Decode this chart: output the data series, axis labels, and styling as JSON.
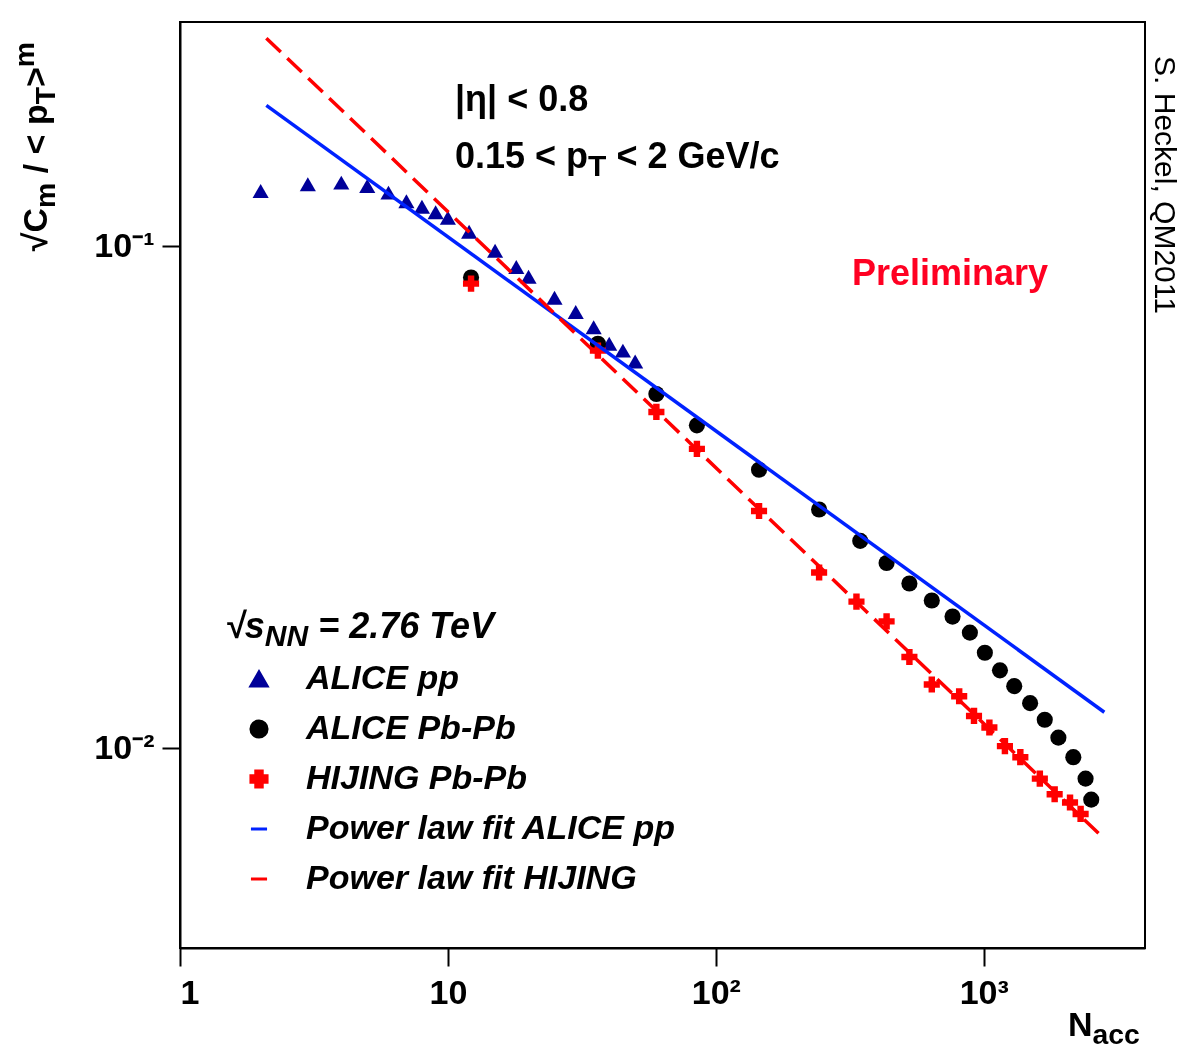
{
  "chart_data": {
    "type": "scatter",
    "xlabel": "N$_{acc}$",
    "ylabel": "√C$_{m}$ / < p$_{T}$>$^{m}$",
    "legend_title": "√s$_{NN}$ = 2.76 TeV",
    "log": "xy",
    "grid": false,
    "legend": "bottom left",
    "xlim": [
      1,
      4000
    ],
    "ylim": [
      0.004,
      0.28
    ],
    "xticks": [
      1,
      10,
      {
        "value": 100,
        "label": "10²"
      },
      {
        "value": 1000,
        "label": "10³"
      }
    ],
    "yticks": [
      {
        "value": 0.01,
        "label": "10⁻²"
      },
      {
        "value": 0.1,
        "label": "10⁻¹"
      }
    ],
    "annotations": [
      "|η| < 0.8",
      "0.15 < p$_{T}$ < 2 GeV/c",
      "Preliminary",
      "S. Heckel, QM2011"
    ],
    "series": [
      {
        "name": "ALICE pp",
        "marker": "triangle",
        "color": "#000099",
        "x": [
          2,
          3,
          4,
          5,
          6,
          7,
          8,
          9,
          10,
          12,
          15,
          18,
          20,
          25,
          30,
          35,
          40,
          45,
          50
        ],
        "values": [
          0.129,
          0.133,
          0.134,
          0.132,
          0.128,
          0.123,
          0.12,
          0.117,
          0.114,
          0.107,
          0.098,
          0.091,
          0.087,
          0.079,
          0.074,
          0.069,
          0.064,
          0.062,
          0.059
        ]
      },
      {
        "name": "ALICE Pb-Pb",
        "marker": "circle",
        "color": "#000000",
        "x": [
          12.2,
          36.3,
          60,
          85,
          145,
          243,
          346,
          434,
          528,
          640,
          765,
          888,
          1010,
          1150,
          1300,
          1490,
          1690,
          1900,
          2160,
          2400,
          2520
        ],
        "values": [
          0.0867,
          0.064,
          0.0508,
          0.044,
          0.0359,
          0.0299,
          0.0259,
          0.0234,
          0.0213,
          0.0197,
          0.0183,
          0.017,
          0.0155,
          0.0143,
          0.0133,
          0.0123,
          0.0114,
          0.0105,
          0.0096,
          0.0087,
          0.0079
        ]
      },
      {
        "name": "HIJING Pb-Pb",
        "marker": "cross",
        "color": "#ff0000",
        "x": [
          12.2,
          36.3,
          60,
          85,
          145,
          243,
          335,
          434,
          528,
          640,
          810,
          920,
          1050,
          1200,
          1370,
          1620,
          1840,
          2100,
          2300
        ],
        "values": [
          0.0843,
          0.062,
          0.0468,
          0.0395,
          0.0297,
          0.0224,
          0.0196,
          0.0179,
          0.0152,
          0.0134,
          0.0127,
          0.0116,
          0.011,
          0.0101,
          0.0096,
          0.0087,
          0.0081,
          0.0078,
          0.0074
        ]
      },
      {
        "name": "Power law fit ALICE pp",
        "type": "line",
        "line_style": "solid",
        "color": "#0022ff",
        "x": [
          2.1,
          2820
        ],
        "values": [
          0.191,
          0.0118
        ]
      },
      {
        "name": "Power law fit HIJING",
        "type": "line",
        "line_style": "dashed",
        "color": "#ff0000",
        "x": [
          2.1,
          2820
        ],
        "values": [
          0.26,
          0.0066
        ]
      }
    ]
  }
}
